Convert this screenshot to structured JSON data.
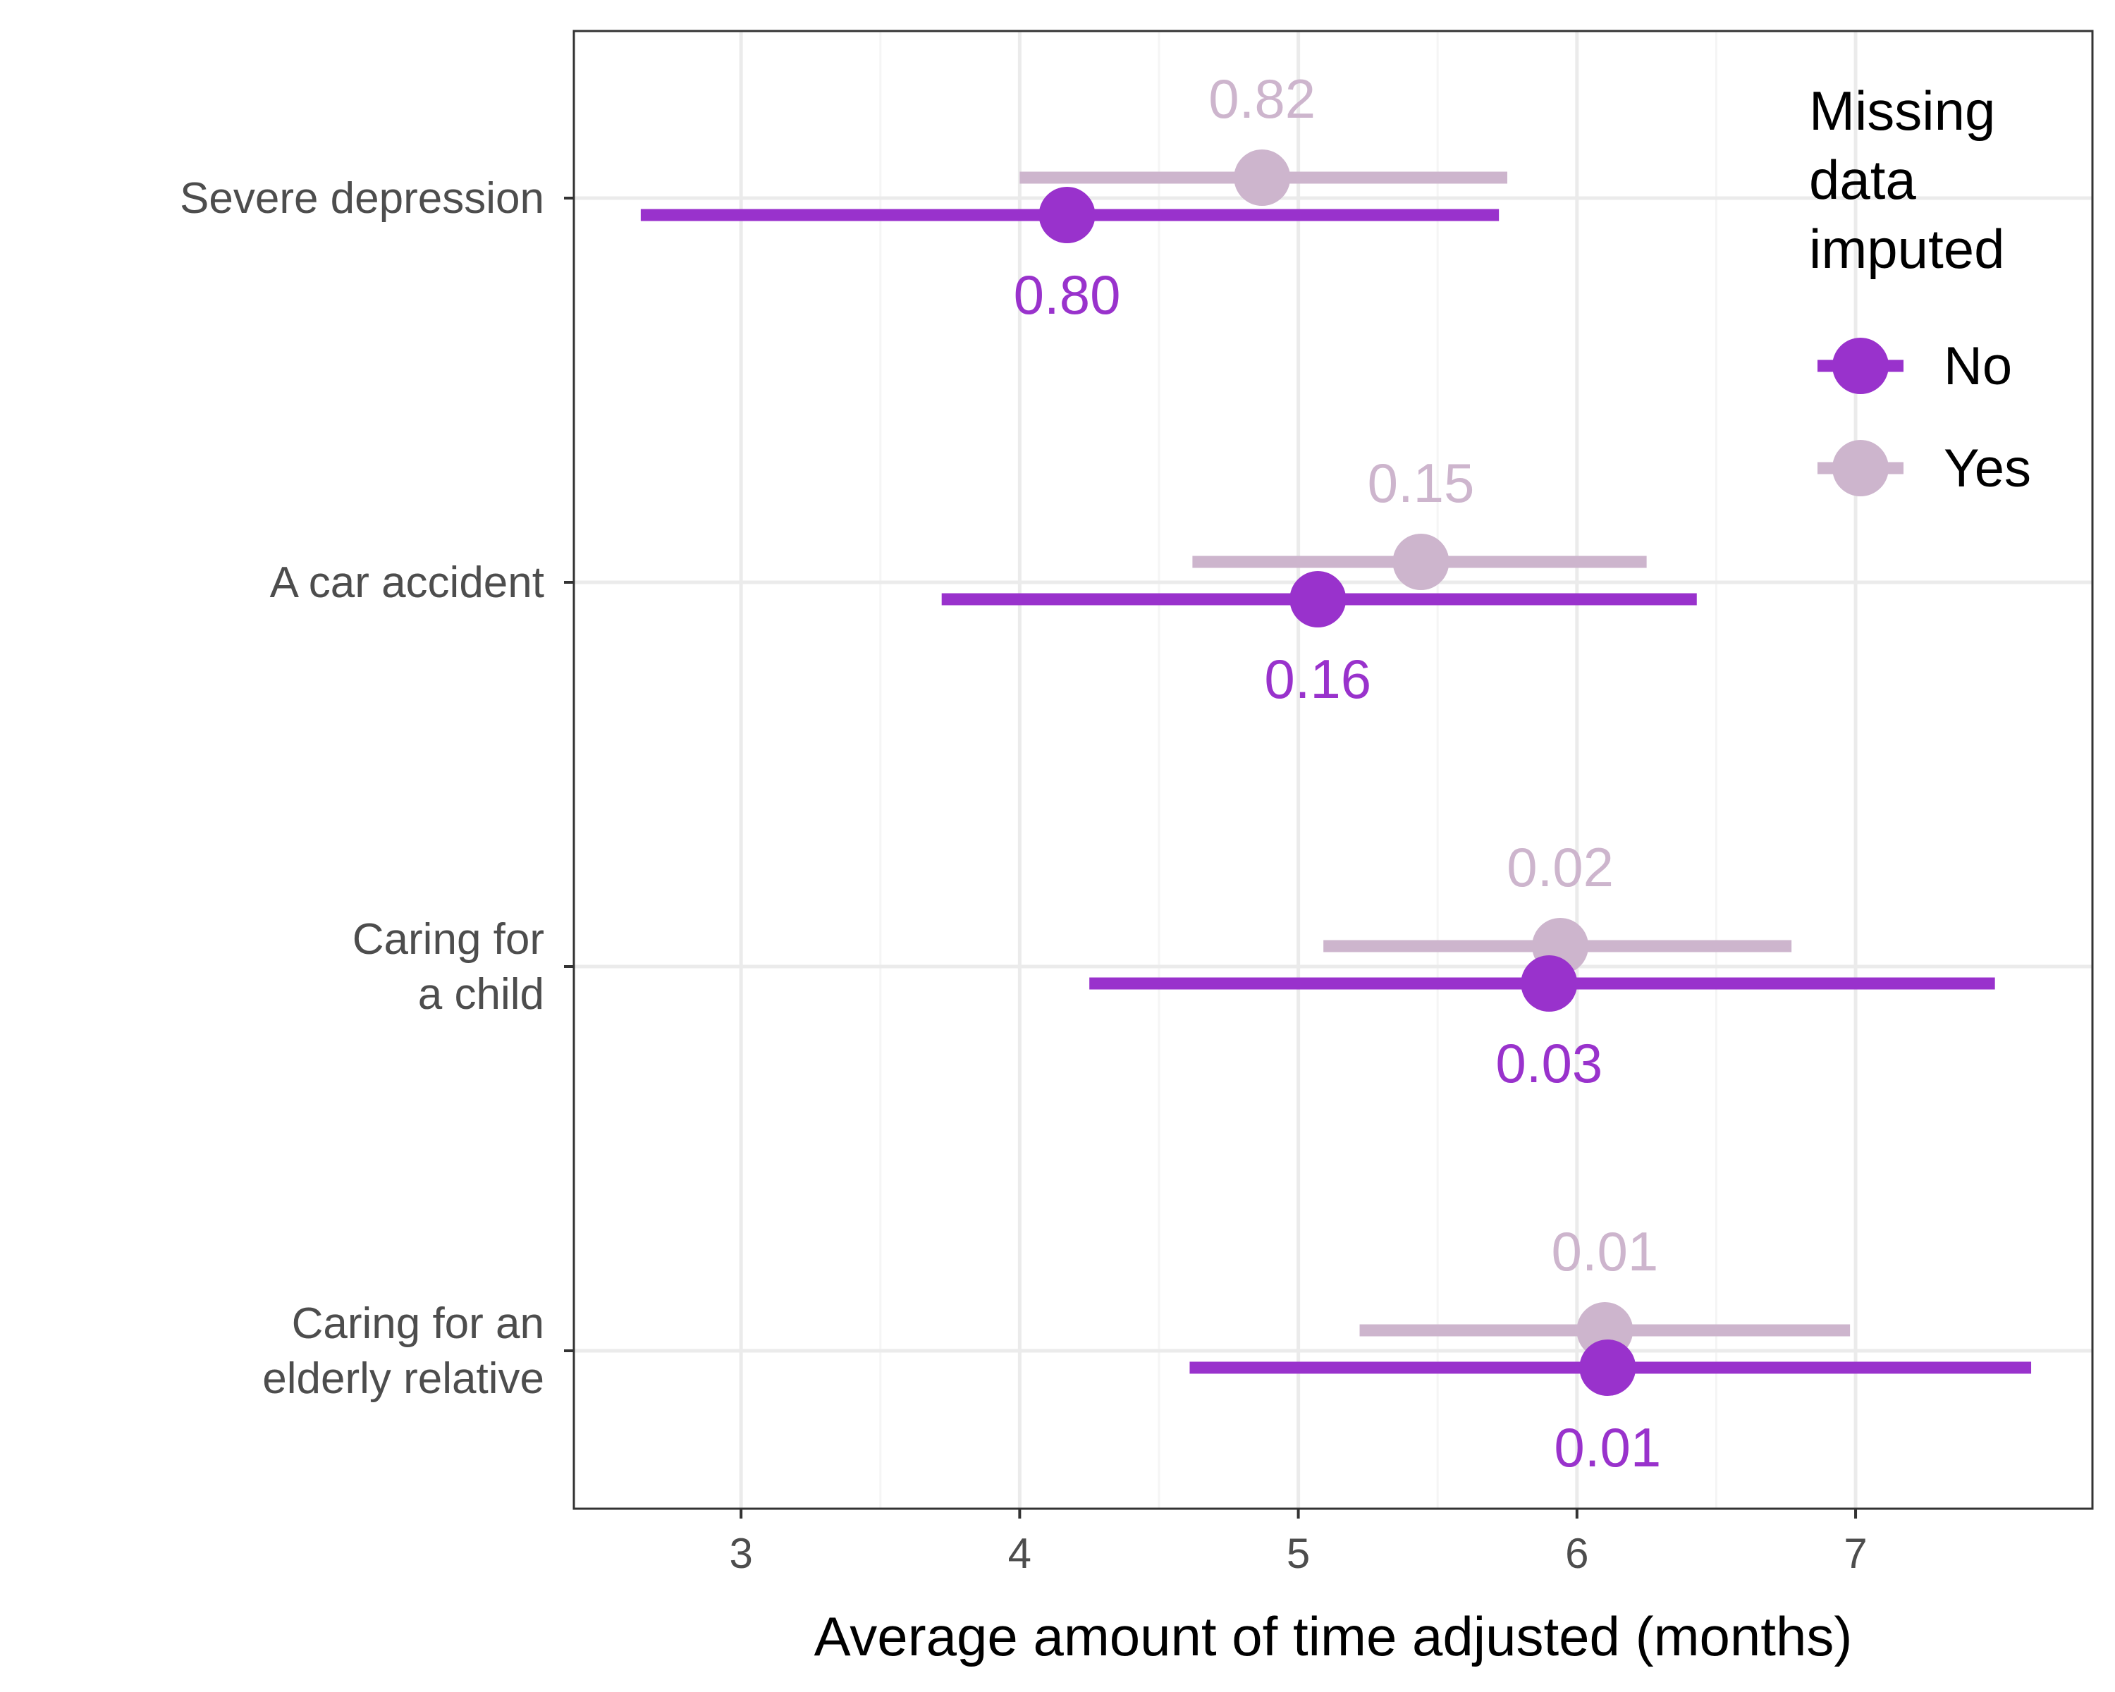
{
  "chart_data": {
    "type": "dot-interval",
    "title": "",
    "xlabel": "Average amount of time adjusted (months)",
    "ylabel": "",
    "xlim": [
      2.4,
      7.85
    ],
    "x_ticks": [
      3,
      4,
      5,
      6,
      7
    ],
    "grid": true,
    "categories": [
      [
        "Severe depression"
      ],
      [
        "A car accident"
      ],
      [
        "Caring for",
        "a child"
      ],
      [
        "Caring for an",
        "elderly relative"
      ]
    ],
    "legend": {
      "title": [
        "Missing",
        "data",
        "imputed"
      ],
      "placement": "top-right"
    },
    "series": [
      {
        "name": "No",
        "color": "#9932CC",
        "points": [
          {
            "estimate": 4.17,
            "low": 2.64,
            "high": 5.72,
            "label": "0.80"
          },
          {
            "estimate": 5.07,
            "low": 3.72,
            "high": 6.43,
            "label": "0.16"
          },
          {
            "estimate": 5.9,
            "low": 4.25,
            "high": 7.5,
            "label": "0.03"
          },
          {
            "estimate": 6.11,
            "low": 4.61,
            "high": 7.63,
            "label": "0.01"
          }
        ]
      },
      {
        "name": "Yes",
        "color": "#CDB5CD",
        "points": [
          {
            "estimate": 4.87,
            "low": 4.0,
            "high": 5.75,
            "label": "0.82"
          },
          {
            "estimate": 5.44,
            "low": 4.62,
            "high": 6.25,
            "label": "0.15"
          },
          {
            "estimate": 5.94,
            "low": 5.09,
            "high": 6.77,
            "label": "0.02"
          },
          {
            "estimate": 6.1,
            "low": 5.22,
            "high": 6.98,
            "label": "0.01"
          }
        ]
      }
    ]
  }
}
